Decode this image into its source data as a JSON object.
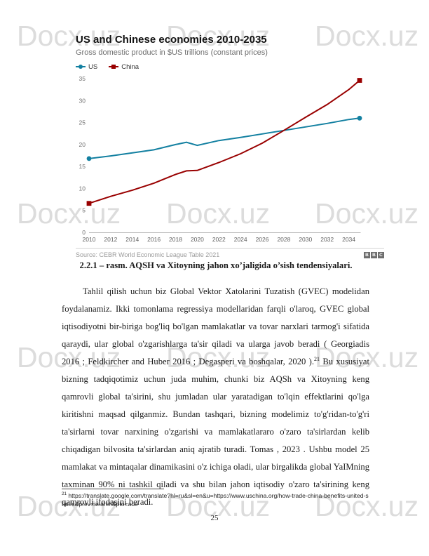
{
  "page": {
    "number": "25",
    "watermark_text": "Docx.uz"
  },
  "chart": {
    "title": "US and Chinese economies 2010-2035",
    "subtitle": "Gross domestic product in $US trillions (constant prices)",
    "source": "Source: CEBR World Economic League Table 2021",
    "logo_letters": [
      "B",
      "B",
      "C"
    ]
  },
  "chart_data": {
    "type": "line",
    "title": "US and Chinese economies 2010-2035",
    "subtitle": "Gross domestic product in $US trillions (constant prices)",
    "x": [
      2010,
      2012,
      2014,
      2016,
      2018,
      2019,
      2020,
      2022,
      2024,
      2026,
      2028,
      2030,
      2032,
      2034,
      2035
    ],
    "series": [
      {
        "name": "US",
        "color": "#1380A1",
        "marker": "circle",
        "values": [
          16.8,
          17.4,
          18.1,
          18.8,
          20.0,
          20.5,
          19.8,
          20.9,
          21.6,
          22.4,
          23.2,
          24.0,
          24.8,
          25.7,
          26.0
        ]
      },
      {
        "name": "China",
        "color": "#990000",
        "marker": "square",
        "values": [
          6.6,
          8.2,
          9.6,
          11.2,
          13.2,
          14.0,
          14.1,
          15.9,
          17.9,
          20.3,
          23.2,
          26.2,
          29.1,
          32.5,
          34.6
        ]
      }
    ],
    "xlabel": "",
    "ylabel": "",
    "ylim": [
      0,
      35
    ],
    "yticks": [
      0,
      5,
      10,
      15,
      20,
      25,
      30,
      35
    ],
    "xticks": [
      2010,
      2012,
      2014,
      2016,
      2018,
      2020,
      2022,
      2024,
      2026,
      2028,
      2030,
      2032,
      2034
    ],
    "grid": false,
    "legend_position": "top-left",
    "source": "Source: CEBR World Economic League Table 2021"
  },
  "figure": {
    "caption": "2.2.1 – rasm. AQSH va Xitoyning jahon xo’jaligida o’sish tendensiyalari."
  },
  "body": {
    "p1": "Tahlil qilish uchun biz Global Vektor Xatolarini Tuzatish (GVEC) modelidan foydalanamiz. Ikki tomonlama regressiya modellaridan farqli o'laroq, GVEC global iqtisodiyotni bir-biriga bog'liq bo'lgan mamlakatlar va tovar narxlari tarmog'i sifatida qaraydi, ular global o'zgarishlarga ta'sir qiladi va ularga javob beradi ( Georgiadis 2016 ; Feldkircher and Huber 2016 ; Degasperi va boshqalar, 2020 ).",
    "footnote_ref": "21",
    "p2": " Bu xususiyat bizning tadqiqotimiz uchun juda muhim, chunki biz AQSh va Xitoyning keng qamrovli global ta'sirini, shu jumladan ular yaratadigan to'lqin effektlarini qo'lga kiritishni maqsad qilganmiz. Bundan tashqari, bizning modelimiz to'g'ridan-to'g'ri ta'sirlarni tovar narxining o'zgarishi va mamlakatlararo o'zaro ta'sirlardan kelib chiqadigan bilvosita ta'sirlardan aniq ajratib turadi. Tomas , 2023 . Ushbu model 25 mamlakat va mintaqalar dinamikasini o'z ichiga oladi, ular birgalikda global YaIMning taxminan 90% ni tashkil qiladi va shu bilan jahon iqtisodiy o'zaro ta'sirining keng qamrovli ifodasini beradi."
  },
  "footnote": {
    "marker": "21",
    "text": " https://translate.google.com/translate?hl=ru&sl=en&u=https://www.uschina.org/how-trade-china-benefits-united-states&prev=search&pto=aue"
  }
}
